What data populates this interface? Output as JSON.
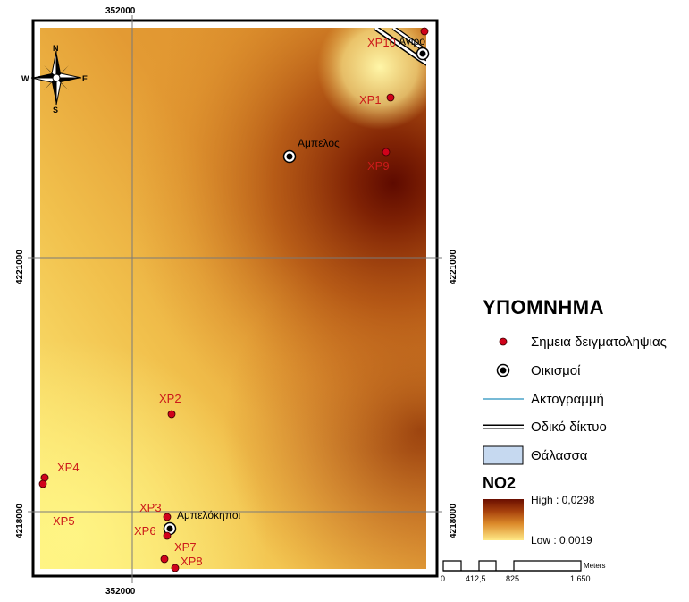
{
  "map": {
    "north_arrow": {
      "n": "N",
      "s": "S",
      "e": "E",
      "w": "W"
    },
    "grid": {
      "x_label": "352000",
      "y_label_top": "4221000",
      "y_label_bottom": "4218000"
    },
    "points": [
      {
        "id": "XP10",
        "label": "XP10"
      },
      {
        "id": "XP1",
        "label": "XP1"
      },
      {
        "id": "XP9",
        "label": "XP9"
      },
      {
        "id": "XP2",
        "label": "XP2"
      },
      {
        "id": "XP4",
        "label": "XP4"
      },
      {
        "id": "XP3",
        "label": "XP3"
      },
      {
        "id": "XP5",
        "label": "XP5"
      },
      {
        "id": "XP6",
        "label": "XP6"
      },
      {
        "id": "XP7",
        "label": "XP7"
      },
      {
        "id": "XP8",
        "label": "XP8"
      }
    ],
    "settlements": [
      {
        "id": "agiros",
        "label": "Αγιρο"
      },
      {
        "id": "ampelos",
        "label": "Αμπελος"
      },
      {
        "id": "ampelokipoi",
        "label": "Αμπελόκηποι"
      }
    ],
    "scale_bar": {
      "unit": "Meters",
      "ticks": [
        "0",
        "412,5",
        "825",
        "1.650"
      ]
    }
  },
  "legend": {
    "title": "ΥΠΟΜΝΗΜΑ",
    "items": [
      {
        "key": "samples",
        "label": "Σημεια δειγματοληψιας"
      },
      {
        "key": "settlements",
        "label": "Οικισμοί"
      },
      {
        "key": "coastline",
        "label": "Ακτογραμμή"
      },
      {
        "key": "roads",
        "label": "Οδικό δίκτυο"
      },
      {
        "key": "sea",
        "label": "Θάλασσα"
      }
    ],
    "no2": {
      "title": "NO2",
      "high": "High : 0,0298",
      "low": "Low : 0,0019"
    }
  },
  "colors": {
    "sample_point": "#d0021b",
    "label_red": "#cc1a1a",
    "coastline": "#4aa3c8",
    "sea": "#c6d9f0"
  }
}
